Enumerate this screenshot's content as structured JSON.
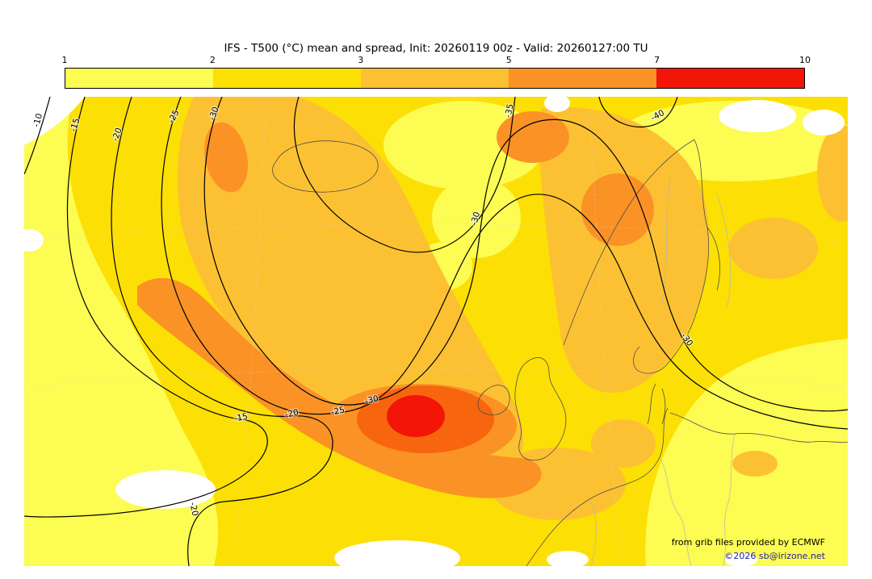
{
  "title": "IFS - T500 (°C) mean and spread, Init: 20260119 00z - Valid: 20260127:00 TU",
  "header": {
    "model": "IFS",
    "parameter": "T500 (°C) mean and spread",
    "init": "20260119 00z",
    "valid": "20260127:00 TU"
  },
  "colorbar": {
    "tick_labels": [
      "1",
      "2",
      "3",
      "5",
      "7",
      "10"
    ],
    "segment_colors": [
      "#fcfc52",
      "#fcdf05",
      "#fcc132",
      "#fb9226",
      "#f31507"
    ]
  },
  "map": {
    "fill_colors": {
      "w": "#ffffff",
      "y1": "#fcfc52",
      "y2": "#fcdf05",
      "o3": "#fcc132",
      "o4": "#fb9226",
      "ring": "#f8650f",
      "red": "#f31507"
    },
    "line_colors": {
      "contour": "#000000",
      "coast": "#4d4d4d",
      "border": "#b5b5b5",
      "graticule": "#d8d8d8"
    },
    "contour_labels": [
      "-10",
      "-15",
      "-20",
      "-25",
      "-35",
      "-40",
      "-30",
      "-30",
      "-30",
      "-25",
      "-20",
      "-15",
      "-20",
      "-30"
    ],
    "credits": {
      "line1": "from grib files provided by ECMWF",
      "line2": "©2026 sb@irizone.net"
    }
  }
}
